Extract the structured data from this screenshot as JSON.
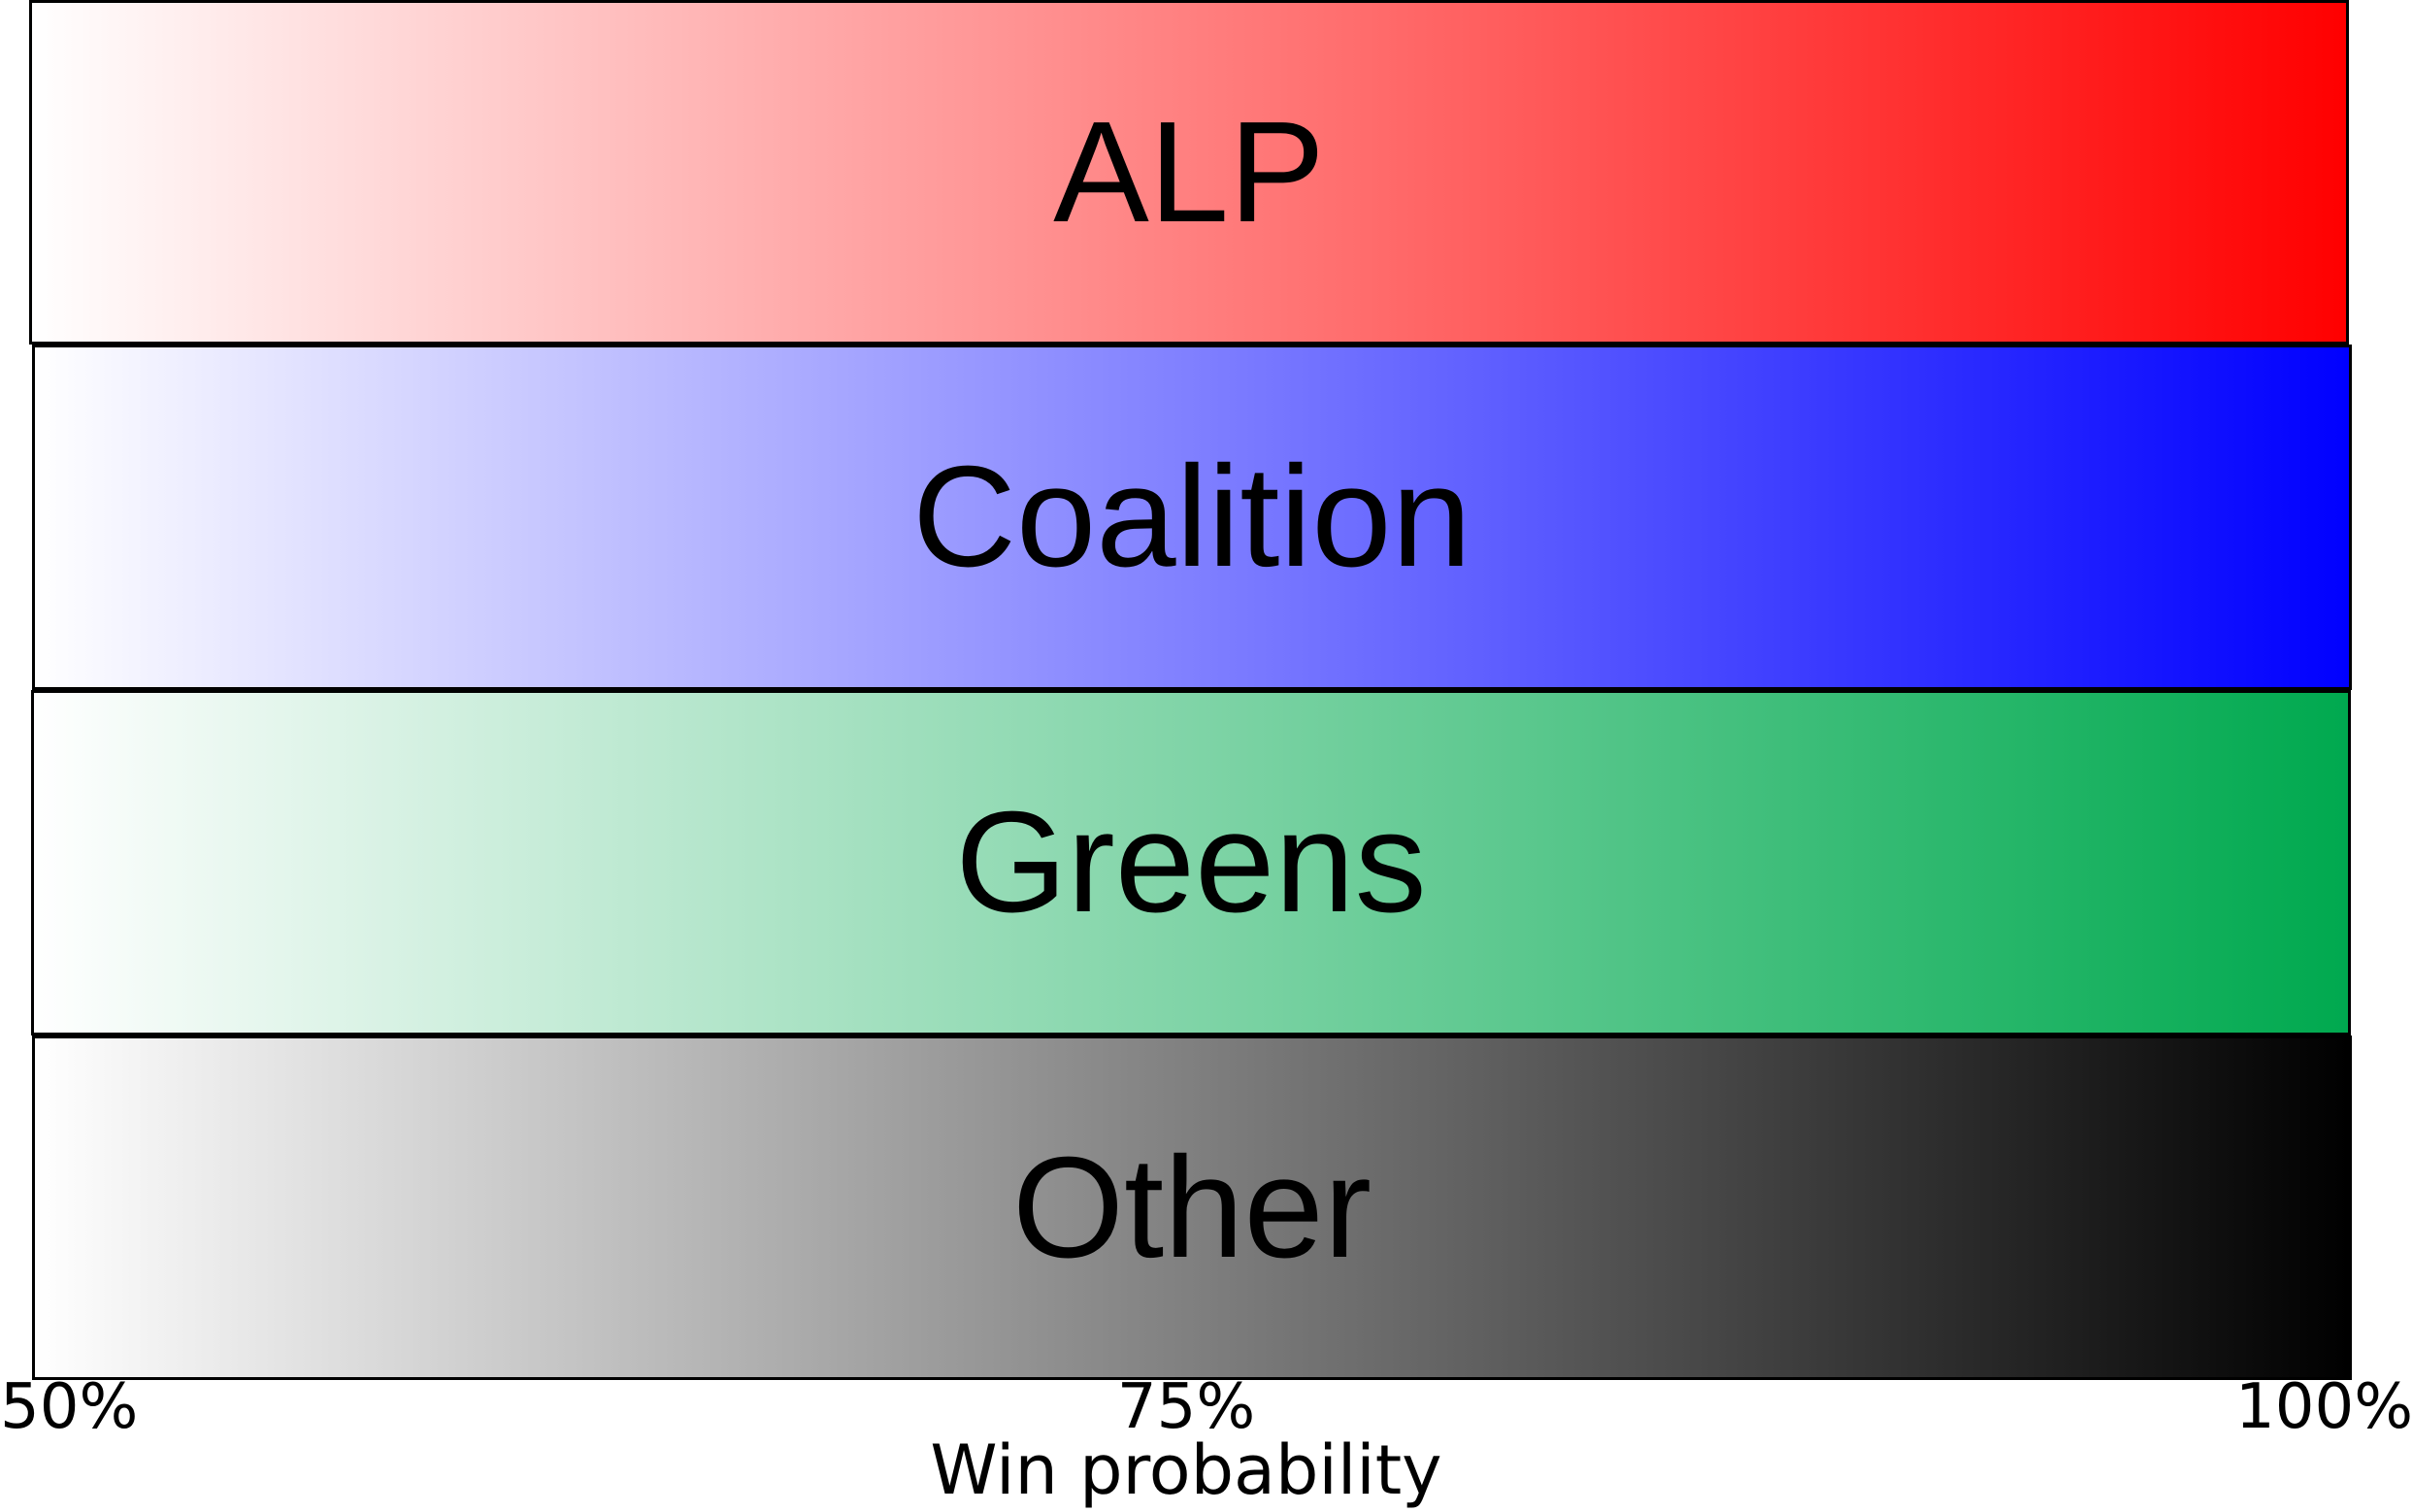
{
  "bands": [
    {
      "label": "ALP",
      "color_from": "#ffffff",
      "color_to": "#ff0000"
    },
    {
      "label": "Coalition",
      "color_from": "#ffffff",
      "color_to": "#0000ff"
    },
    {
      "label": "Greens",
      "color_from": "#ffffff",
      "color_to": "#00a94f"
    },
    {
      "label": "Other",
      "color_from": "#ffffff",
      "color_to": "#000000"
    }
  ],
  "axis": {
    "ticks": [
      "50%",
      "75%",
      "100%"
    ],
    "title": "Win probability"
  }
}
